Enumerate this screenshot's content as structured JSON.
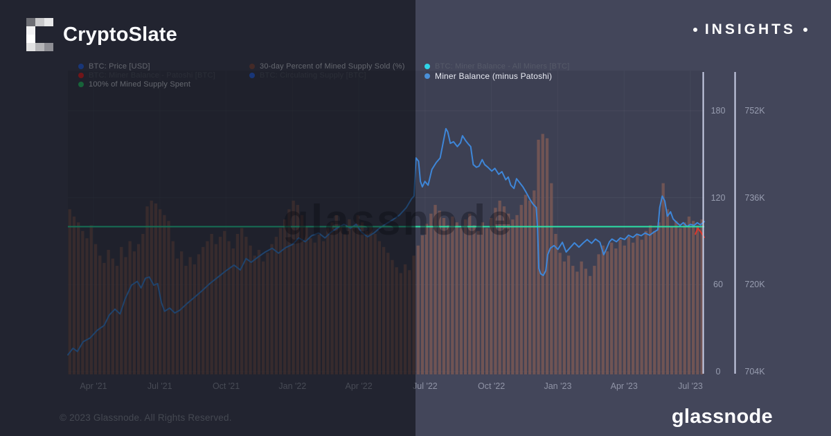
{
  "header": {
    "brand": "CryptoSlate",
    "insights_label": "INSIGHTS",
    "bullet_icon": "circle-dot"
  },
  "logo_pixels": [
    [
      "#6e6f75",
      "#c9c9cb",
      "#e8e8e9"
    ],
    [
      "#f4f4f5",
      "",
      ""
    ],
    [
      "#ffffff",
      "",
      ""
    ],
    [
      "#e2e2e3",
      "#b4b4b7",
      "#8e8e94"
    ]
  ],
  "watermark": "glassnode",
  "footer": {
    "copyright": "© 2023 Glassnode. All Rights Reserved.",
    "wordmark": "glassnode"
  },
  "colors": {
    "background": "#43465a",
    "overlay": "rgba(4,5,10,0.52)",
    "bars": "#7d5a55",
    "balance_line": "#3e86d8",
    "supply_spent_line": "#2be3a7",
    "patoshi_line": "#e0352b",
    "axis_line": "#ccd1ea",
    "grid_line": "rgba(255,255,255,0.05)"
  },
  "legend": {
    "items": [
      {
        "label": "BTC: Price [USD]",
        "color": "#2f6bf0",
        "state": "active",
        "col": 1,
        "row": 1
      },
      {
        "label": "BTC: Miner Balance - Patoshi [BTC]",
        "color": "#e8262b",
        "state": "inactive",
        "col": 1,
        "row": 2
      },
      {
        "label": "100% of Mined Supply Spent",
        "color": "#2dc96f",
        "state": "active",
        "col": 1,
        "row": 3
      },
      {
        "label": "30-day Percent of Mined Supply Sold (%)",
        "color": "#8a5248",
        "state": "active",
        "col": 2,
        "row": 1
      },
      {
        "label": "BTC: Circulating Supply [BTC]",
        "color": "#2f6bf0",
        "state": "inactive",
        "col": 2,
        "row": 2
      },
      {
        "label": "BTC: Miner Balance - All Miners [BTC]",
        "color": "#2fd5e8",
        "state": "inactive",
        "col": 3,
        "row": 1
      },
      {
        "label": "Miner Balance (minus Patoshi)",
        "color": "#4a90d9",
        "state": "highlight",
        "col": 3,
        "row": 2
      }
    ]
  },
  "chart_data": {
    "type": "mixed",
    "title": "",
    "grid": true,
    "x_axis": {
      "ticks": [
        "Apr '21",
        "Jul '21",
        "Oct '21",
        "Jan '22",
        "Apr '22",
        "Jul '22",
        "Oct '22",
        "Jan '23",
        "Apr '23",
        "Jul '23"
      ]
    },
    "right_axis_percent": {
      "tick_labels": [
        "180",
        "120",
        "60",
        "0"
      ],
      "tick_values": [
        180,
        120,
        60,
        0
      ],
      "range": [
        0,
        190
      ]
    },
    "right_axis_balance": {
      "tick_labels": [
        "752K",
        "736K",
        "720K",
        "704K"
      ],
      "tick_values": [
        752,
        736,
        720,
        704
      ],
      "unit": "K BTC",
      "range": [
        704,
        752
      ]
    },
    "series": [
      {
        "name": "30-day Percent of Mined Supply Sold (%)",
        "type": "bar",
        "axis": "percent",
        "color": "#7d5a55",
        "opacity": 0.8,
        "values": [
          112,
          107,
          103,
          97,
          92,
          101,
          88,
          80,
          75,
          84,
          78,
          73,
          86,
          79,
          90,
          83,
          88,
          95,
          114,
          118,
          116,
          112,
          108,
          104,
          90,
          78,
          83,
          73,
          79,
          74,
          81,
          86,
          90,
          95,
          88,
          93,
          97,
          90,
          85,
          95,
          99,
          93,
          87,
          80,
          84,
          76,
          82,
          88,
          93,
          99,
          105,
          112,
          118,
          115,
          108,
          100,
          92,
          89,
          95,
          90,
          99,
          103,
          108,
          100,
          95,
          105,
          99,
          108,
          103,
          97,
          100,
          95,
          90,
          86,
          82,
          77,
          72,
          68,
          74,
          70,
          80,
          87,
          94,
          102,
          109,
          115,
          111,
          106,
          101,
          107,
          103,
          99,
          105,
          109,
          101,
          97,
          103,
          99,
          106,
          113,
          118,
          114,
          109,
          105,
          108,
          115,
          122,
          118,
          125,
          160,
          164,
          161,
          130,
          95,
          82,
          76,
          80,
          73,
          69,
          76,
          71,
          66,
          73,
          81,
          87,
          83,
          89,
          85,
          91,
          87,
          93,
          89,
          95,
          91,
          97,
          101,
          97,
          103,
          130,
          112,
          100,
          104,
          99,
          103,
          107,
          104,
          101,
          105
        ]
      },
      {
        "name": "Miner Balance (minus Patoshi)",
        "type": "line",
        "axis": "balance",
        "color": "#3e86d8",
        "width": 2,
        "points": [
          [
            0,
            707.1
          ],
          [
            0.008,
            708.3
          ],
          [
            0.015,
            707.7
          ],
          [
            0.024,
            709.5
          ],
          [
            0.035,
            710.2
          ],
          [
            0.046,
            711.6
          ],
          [
            0.057,
            712.5
          ],
          [
            0.065,
            714.4
          ],
          [
            0.074,
            715.5
          ],
          [
            0.082,
            714.6
          ],
          [
            0.09,
            717.4
          ],
          [
            0.1,
            719.9
          ],
          [
            0.109,
            720.6
          ],
          [
            0.115,
            719.4
          ],
          [
            0.122,
            721.2
          ],
          [
            0.128,
            721.4
          ],
          [
            0.135,
            719.9
          ],
          [
            0.141,
            720.2
          ],
          [
            0.147,
            716.7
          ],
          [
            0.152,
            715.1
          ],
          [
            0.16,
            715.7
          ],
          [
            0.168,
            714.8
          ],
          [
            0.176,
            715.3
          ],
          [
            0.187,
            716.5
          ],
          [
            0.198,
            717.6
          ],
          [
            0.211,
            718.9
          ],
          [
            0.223,
            720.2
          ],
          [
            0.236,
            721.4
          ],
          [
            0.249,
            722.6
          ],
          [
            0.261,
            723.6
          ],
          [
            0.271,
            722.7
          ],
          [
            0.28,
            724.8
          ],
          [
            0.288,
            724.1
          ],
          [
            0.299,
            725.1
          ],
          [
            0.31,
            726.0
          ],
          [
            0.321,
            726.7
          ],
          [
            0.331,
            725.8
          ],
          [
            0.342,
            726.8
          ],
          [
            0.353,
            727.4
          ],
          [
            0.363,
            728.6
          ],
          [
            0.373,
            727.9
          ],
          [
            0.383,
            729.0
          ],
          [
            0.394,
            729.5
          ],
          [
            0.404,
            728.6
          ],
          [
            0.413,
            729.6
          ],
          [
            0.424,
            730.5
          ],
          [
            0.434,
            731.1
          ],
          [
            0.444,
            730.4
          ],
          [
            0.453,
            731.1
          ],
          [
            0.461,
            729.7
          ],
          [
            0.471,
            728.8
          ],
          [
            0.481,
            729.5
          ],
          [
            0.491,
            730.5
          ],
          [
            0.5,
            731.2
          ],
          [
            0.51,
            731.9
          ],
          [
            0.521,
            732.8
          ],
          [
            0.532,
            734.2
          ],
          [
            0.54,
            735.8
          ],
          [
            0.544,
            736.3
          ],
          [
            0.547,
            743.3
          ],
          [
            0.551,
            742.7
          ],
          [
            0.554,
            739.0
          ],
          [
            0.557,
            738.0
          ],
          [
            0.561,
            739.0
          ],
          [
            0.566,
            738.3
          ],
          [
            0.572,
            741.2
          ],
          [
            0.579,
            742.5
          ],
          [
            0.585,
            743.3
          ],
          [
            0.59,
            746.3
          ],
          [
            0.594,
            748.7
          ],
          [
            0.597,
            748.1
          ],
          [
            0.601,
            746.0
          ],
          [
            0.606,
            746.3
          ],
          [
            0.612,
            745.4
          ],
          [
            0.617,
            746.1
          ],
          [
            0.62,
            747.4
          ],
          [
            0.625,
            746.5
          ],
          [
            0.629,
            745.9
          ],
          [
            0.633,
            745.4
          ],
          [
            0.637,
            742.1
          ],
          [
            0.642,
            741.6
          ],
          [
            0.646,
            741.8
          ],
          [
            0.651,
            743.0
          ],
          [
            0.655,
            742.1
          ],
          [
            0.66,
            741.6
          ],
          [
            0.666,
            740.9
          ],
          [
            0.671,
            741.4
          ],
          [
            0.677,
            740.3
          ],
          [
            0.682,
            740.8
          ],
          [
            0.688,
            739.3
          ],
          [
            0.692,
            739.8
          ],
          [
            0.696,
            738.3
          ],
          [
            0.701,
            737.7
          ],
          [
            0.705,
            739.5
          ],
          [
            0.709,
            738.9
          ],
          [
            0.715,
            738.0
          ],
          [
            0.72,
            737.0
          ],
          [
            0.726,
            735.7
          ],
          [
            0.731,
            734.8
          ],
          [
            0.736,
            734.2
          ],
          [
            0.738,
            730.4
          ],
          [
            0.74,
            723.0
          ],
          [
            0.743,
            722.0
          ],
          [
            0.747,
            721.7
          ],
          [
            0.751,
            722.6
          ],
          [
            0.754,
            725.5
          ],
          [
            0.758,
            726.7
          ],
          [
            0.764,
            727.2
          ],
          [
            0.77,
            726.5
          ],
          [
            0.777,
            727.8
          ],
          [
            0.783,
            726.0
          ],
          [
            0.79,
            726.9
          ],
          [
            0.796,
            727.7
          ],
          [
            0.803,
            726.9
          ],
          [
            0.81,
            727.7
          ],
          [
            0.816,
            728.3
          ],
          [
            0.823,
            727.6
          ],
          [
            0.829,
            728.4
          ],
          [
            0.836,
            727.8
          ],
          [
            0.842,
            725.5
          ],
          [
            0.846,
            726.5
          ],
          [
            0.851,
            727.9
          ],
          [
            0.855,
            728.4
          ],
          [
            0.862,
            727.9
          ],
          [
            0.868,
            728.6
          ],
          [
            0.875,
            728.3
          ],
          [
            0.881,
            729.1
          ],
          [
            0.888,
            728.7
          ],
          [
            0.894,
            729.3
          ],
          [
            0.901,
            729.0
          ],
          [
            0.907,
            729.5
          ],
          [
            0.914,
            729.1
          ],
          [
            0.92,
            729.6
          ],
          [
            0.927,
            730.1
          ],
          [
            0.93,
            734.2
          ],
          [
            0.934,
            736.3
          ],
          [
            0.938,
            735.4
          ],
          [
            0.942,
            732.6
          ],
          [
            0.947,
            733.4
          ],
          [
            0.951,
            732.1
          ],
          [
            0.956,
            731.5
          ],
          [
            0.962,
            730.9
          ],
          [
            0.967,
            731.4
          ],
          [
            0.973,
            730.7
          ],
          [
            0.978,
            731.1
          ],
          [
            0.984,
            730.9
          ],
          [
            0.989,
            731.4
          ],
          [
            0.994,
            731.0
          ],
          [
            1,
            731.6
          ]
        ]
      },
      {
        "name": "100% of Mined Supply Spent",
        "type": "hline",
        "axis": "percent",
        "color": "#2be3a7",
        "width": 2,
        "value": 100
      },
      {
        "name": "BTC: Miner Balance - Patoshi [BTC]",
        "type": "line",
        "axis": "balance",
        "color": "#e0352b",
        "width": 2,
        "points": [
          [
            0.986,
            729.3
          ],
          [
            0.99,
            730.4
          ],
          [
            0.995,
            729.6
          ],
          [
            1,
            728.7
          ]
        ]
      }
    ]
  }
}
